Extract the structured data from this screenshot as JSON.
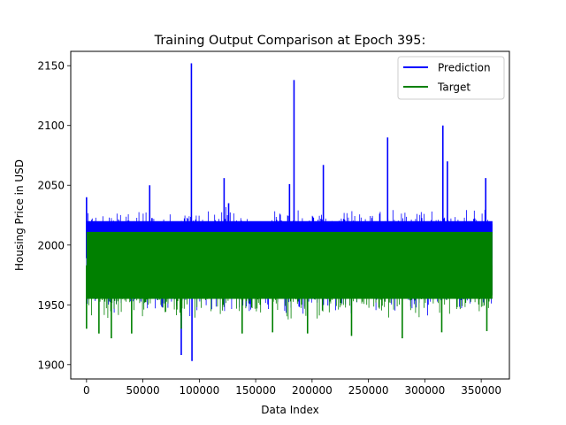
{
  "chart_data": {
    "type": "line",
    "title": "Training Output Comparison at Epoch 395:",
    "xlabel": "Data Index",
    "ylabel": "Housing Price in USD",
    "xlim": [
      -14000,
      375000
    ],
    "ylim": [
      1888,
      2162
    ],
    "x_ticks": [
      0,
      50000,
      100000,
      150000,
      200000,
      250000,
      300000,
      350000
    ],
    "x_tick_labels": [
      "0",
      "50000",
      "100000",
      "150000",
      "200000",
      "250000",
      "300000",
      "350000"
    ],
    "y_ticks": [
      1900,
      1950,
      2000,
      2050,
      2100,
      2150
    ],
    "y_tick_labels": [
      "1900",
      "1950",
      "2000",
      "2050",
      "2100",
      "2150"
    ],
    "grid": false,
    "legend_position": "top-right",
    "x_range": [
      0,
      360000
    ],
    "series": [
      {
        "name": "Prediction",
        "color": "#0000ff",
        "band": [
          1958,
          2020
        ],
        "spikes": [
          {
            "x": 0,
            "y": 2040
          },
          {
            "x": 56000,
            "y": 2050
          },
          {
            "x": 84000,
            "y": 1908
          },
          {
            "x": 93000,
            "y": 2152
          },
          {
            "x": 93500,
            "y": 1903
          },
          {
            "x": 122000,
            "y": 2056
          },
          {
            "x": 126000,
            "y": 2035
          },
          {
            "x": 180000,
            "y": 2051
          },
          {
            "x": 184000,
            "y": 2138
          },
          {
            "x": 210000,
            "y": 2067
          },
          {
            "x": 267000,
            "y": 2090
          },
          {
            "x": 316000,
            "y": 2100
          },
          {
            "x": 320000,
            "y": 2070
          },
          {
            "x": 354000,
            "y": 2056
          }
        ]
      },
      {
        "name": "Target",
        "color": "#008000",
        "band": [
          1955,
          2011
        ],
        "spikes": [
          {
            "x": 0,
            "y": 1930
          },
          {
            "x": 11000,
            "y": 1926
          },
          {
            "x": 22000,
            "y": 1922
          },
          {
            "x": 40000,
            "y": 1926
          },
          {
            "x": 84000,
            "y": 1930
          },
          {
            "x": 138000,
            "y": 1926
          },
          {
            "x": 165000,
            "y": 1927
          },
          {
            "x": 196000,
            "y": 1926
          },
          {
            "x": 235000,
            "y": 1924
          },
          {
            "x": 280000,
            "y": 1922
          },
          {
            "x": 315000,
            "y": 1927
          },
          {
            "x": 355000,
            "y": 1928
          }
        ]
      }
    ]
  }
}
